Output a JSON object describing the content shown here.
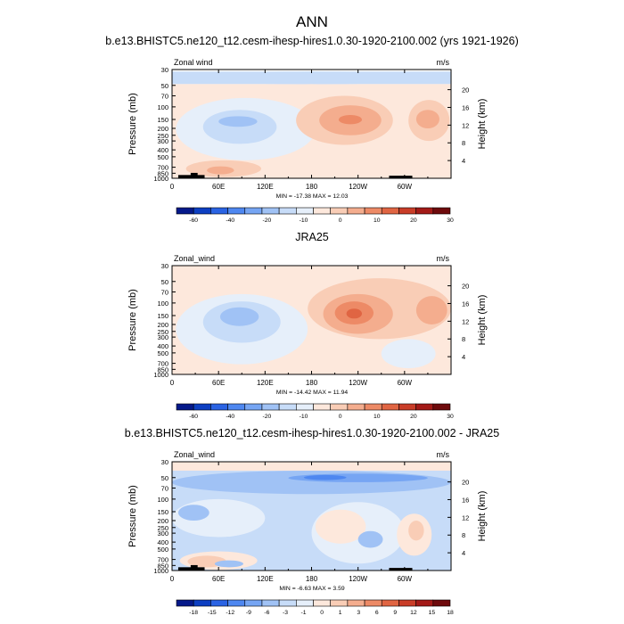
{
  "figure": {
    "main_title": "ANN"
  },
  "chart_data": [
    {
      "type": "heatmap",
      "title": "b.e13.BHISTC5.ne120_t12.cesm-ihesp-hires1.0.30-1920-2100.002 (yrs 1921-1926)",
      "variable_label": "Zonal wind",
      "units": "m/s",
      "ylabel": "Pressure (mb)",
      "ylabel_right": "Height (km)",
      "x_ticks": [
        "0",
        "60E",
        "120E",
        "180",
        "120W",
        "60W"
      ],
      "y_ticks": [
        "30",
        "50",
        "70",
        "100",
        "150",
        "200",
        "250",
        "300",
        "400",
        "500",
        "700",
        "850",
        "1000"
      ],
      "height_ticks": [
        "4",
        "8",
        "12",
        "16",
        "20"
      ],
      "stats_text": "MIN = -17.38   MAX = 12.03",
      "min": -17.38,
      "max": 12.03,
      "colorbar_levels": [
        "-60",
        "-40",
        "-20",
        "-10",
        "0",
        "10",
        "20",
        "30"
      ],
      "colors": [
        "#05198a",
        "#0d3fc2",
        "#2a63e3",
        "#4e87f0",
        "#76a5f3",
        "#a0c2f5",
        "#c7dcf8",
        "#e6effa",
        "#fde8dc",
        "#f9cdb6",
        "#f4ad8e",
        "#ed8a66",
        "#e06543",
        "#c93d28",
        "#a31a17",
        "#6e0a0c"
      ],
      "regions": [
        {
          "label": "weak-negative-band-high",
          "x0": 0,
          "x1": 360,
          "p0": 32,
          "p1": 48,
          "level": 6
        },
        {
          "label": "weak-positive-background",
          "x0": 0,
          "x1": 360,
          "p0": 48,
          "p1": 1000,
          "level": 8
        },
        {
          "label": "easterly-indian-ocean",
          "x0": 5,
          "x1": 185,
          "p0": 75,
          "p1": 560,
          "level": 7
        },
        {
          "label": "easterly-indian-ocean-core",
          "x0": 40,
          "x1": 135,
          "p0": 110,
          "p1": 330,
          "level": 6
        },
        {
          "label": "easterly-indian-ocean-max",
          "x0": 60,
          "x1": 110,
          "p0": 135,
          "p1": 190,
          "level": 5
        },
        {
          "label": "westerly-pacific",
          "x0": 160,
          "x1": 285,
          "p0": 70,
          "p1": 340,
          "level": 9
        },
        {
          "label": "westerly-pacific-core",
          "x0": 190,
          "x1": 270,
          "p0": 95,
          "p1": 250,
          "level": 10
        },
        {
          "label": "westerly-pacific-max",
          "x0": 215,
          "x1": 245,
          "p0": 130,
          "p1": 175,
          "level": 11
        },
        {
          "label": "westerly-atlantic",
          "x0": 305,
          "x1": 358,
          "p0": 80,
          "p1": 300,
          "level": 9
        },
        {
          "label": "westerly-atlantic-core",
          "x0": 315,
          "x1": 345,
          "p0": 110,
          "p1": 200,
          "level": 10
        },
        {
          "label": "surface-westerly-africa",
          "x0": 18,
          "x1": 115,
          "p0": 560,
          "p1": 960,
          "level": 9
        },
        {
          "label": "surface-westerly-core",
          "x0": 45,
          "x1": 80,
          "p0": 680,
          "p1": 880,
          "level": 10
        }
      ],
      "terrain": [
        {
          "label": "africa-highland",
          "x0": 8,
          "x1": 42,
          "p0": 900,
          "p1": 1000
        },
        {
          "label": "african-peak",
          "x0": 24,
          "x1": 33,
          "p0": 840,
          "p1": 1000
        },
        {
          "label": "andes",
          "x0": 280,
          "x1": 310,
          "p0": 920,
          "p1": 1000
        }
      ]
    },
    {
      "type": "heatmap",
      "title": "JRA25",
      "variable_label": "Zonal_wind",
      "units": "m/s",
      "ylabel": "Pressure (mb)",
      "ylabel_right": "Height (km)",
      "x_ticks": [
        "0",
        "60E",
        "120E",
        "180",
        "120W",
        "60W"
      ],
      "y_ticks": [
        "30",
        "50",
        "70",
        "100",
        "150",
        "200",
        "250",
        "300",
        "400",
        "500",
        "700",
        "850",
        "1000"
      ],
      "height_ticks": [
        "4",
        "8",
        "12",
        "16",
        "20"
      ],
      "stats_text": "MIN = -14.42   MAX = 11.94",
      "min": -14.42,
      "max": 11.94,
      "colorbar_levels": [
        "-60",
        "-40",
        "-20",
        "-10",
        "0",
        "10",
        "20",
        "30"
      ],
      "colors": [
        "#05198a",
        "#0d3fc2",
        "#2a63e3",
        "#4e87f0",
        "#76a5f3",
        "#a0c2f5",
        "#c7dcf8",
        "#e6effa",
        "#fde8dc",
        "#f9cdb6",
        "#f4ad8e",
        "#ed8a66",
        "#e06543",
        "#c93d28",
        "#a31a17",
        "#6e0a0c"
      ],
      "regions": [
        {
          "label": "positive-background",
          "x0": 0,
          "x1": 360,
          "p0": 30,
          "p1": 1000,
          "level": 8
        },
        {
          "label": "easterly-broad",
          "x0": 5,
          "x1": 175,
          "p0": 75,
          "p1": 720,
          "level": 7
        },
        {
          "label": "easterly-core",
          "x0": 40,
          "x1": 140,
          "p0": 95,
          "p1": 360,
          "level": 6
        },
        {
          "label": "easterly-max",
          "x0": 62,
          "x1": 112,
          "p0": 115,
          "p1": 210,
          "level": 5
        },
        {
          "label": "easterly-eastpac",
          "x0": 270,
          "x1": 340,
          "p0": 320,
          "p1": 820,
          "level": 7
        },
        {
          "label": "westerly-broad",
          "x0": 175,
          "x1": 360,
          "p0": 45,
          "p1": 320,
          "level": 9
        },
        {
          "label": "westerly-pacific",
          "x0": 195,
          "x1": 285,
          "p0": 75,
          "p1": 270,
          "level": 10
        },
        {
          "label": "westerly-pacific-core",
          "x0": 210,
          "x1": 260,
          "p0": 95,
          "p1": 200,
          "level": 11
        },
        {
          "label": "westerly-pacific-max",
          "x0": 225,
          "x1": 245,
          "p0": 120,
          "p1": 165,
          "level": 12
        },
        {
          "label": "westerly-atlantic",
          "x0": 315,
          "x1": 355,
          "p0": 80,
          "p1": 200,
          "level": 10
        }
      ],
      "terrain": []
    },
    {
      "type": "heatmap",
      "title": "b.e13.BHISTC5.ne120_t12.cesm-ihesp-hires1.0.30-1920-2100.002 - JRA25",
      "variable_label": "Zonal_wind",
      "units": "m/s",
      "ylabel": "Pressure (mb)",
      "ylabel_right": "Height (km)",
      "x_ticks": [
        "0",
        "60E",
        "120E",
        "180",
        "120W",
        "60W"
      ],
      "y_ticks": [
        "30",
        "50",
        "70",
        "100",
        "150",
        "200",
        "250",
        "300",
        "400",
        "500",
        "700",
        "850",
        "1000"
      ],
      "height_ticks": [
        "4",
        "8",
        "12",
        "16",
        "20"
      ],
      "stats_text": "MIN = -6.63   MAX = 3.59",
      "min": -6.63,
      "max": 3.59,
      "colorbar_levels": [
        "-18",
        "-15",
        "-12",
        "-9",
        "-6",
        "-3",
        "-1",
        "0",
        "1",
        "3",
        "6",
        "9",
        "12",
        "15",
        "18"
      ],
      "colors": [
        "#05198a",
        "#0d3fc2",
        "#2a63e3",
        "#4e87f0",
        "#76a5f3",
        "#a0c2f5",
        "#c7dcf8",
        "#e6effa",
        "#fde8dc",
        "#f9cdb6",
        "#f4ad8e",
        "#ed8a66",
        "#e06543",
        "#c93d28",
        "#a31a17",
        "#6e0a0c"
      ],
      "regions": [
        {
          "label": "slight-positive-top",
          "x0": 0,
          "x1": 360,
          "p0": 30,
          "p1": 40,
          "level": 8
        },
        {
          "label": "slight-negative-background",
          "x0": 0,
          "x1": 360,
          "p0": 40,
          "p1": 1000,
          "level": 6
        },
        {
          "label": "negative-upper-band",
          "x0": 0,
          "x1": 360,
          "p0": 40,
          "p1": 85,
          "level": 5
        },
        {
          "label": "negative-upper-core",
          "x0": 150,
          "x1": 330,
          "p0": 44,
          "p1": 58,
          "level": 4
        },
        {
          "label": "negative-upper-max",
          "x0": 170,
          "x1": 225,
          "p0": 46,
          "p1": 54,
          "level": 3
        },
        {
          "label": "near-zero-west",
          "x0": 0,
          "x1": 120,
          "p0": 100,
          "p1": 340,
          "level": 7
        },
        {
          "label": "near-zero-pacific",
          "x0": 180,
          "x1": 300,
          "p0": 110,
          "p1": 800,
          "level": 7
        },
        {
          "label": "weak-positive-pacific",
          "x0": 185,
          "x1": 250,
          "p0": 140,
          "p1": 420,
          "level": 8
        },
        {
          "label": "weak-positive-eastpac",
          "x0": 290,
          "x1": 335,
          "p0": 160,
          "p1": 620,
          "level": 8
        },
        {
          "label": "positive-eastpac-core",
          "x0": 305,
          "x1": 325,
          "p0": 200,
          "p1": 380,
          "level": 9
        },
        {
          "label": "negative-patch-pacific",
          "x0": 240,
          "x1": 272,
          "p0": 280,
          "p1": 480,
          "level": 5
        },
        {
          "label": "negative-west-upper",
          "x0": 8,
          "x1": 48,
          "p0": 120,
          "p1": 200,
          "level": 5
        },
        {
          "label": "surface-positive-africa",
          "x0": 10,
          "x1": 110,
          "p0": 540,
          "p1": 980,
          "level": 8
        },
        {
          "label": "surface-positive-core",
          "x0": 20,
          "x1": 70,
          "p0": 620,
          "p1": 900,
          "level": 9
        },
        {
          "label": "surface-negative-africa",
          "x0": 55,
          "x1": 92,
          "p0": 720,
          "p1": 900,
          "level": 5
        }
      ],
      "terrain": [
        {
          "label": "africa-highland",
          "x0": 8,
          "x1": 42,
          "p0": 900,
          "p1": 1000
        },
        {
          "label": "african-peak",
          "x0": 24,
          "x1": 33,
          "p0": 840,
          "p1": 1000
        },
        {
          "label": "andes",
          "x0": 280,
          "x1": 310,
          "p0": 920,
          "p1": 1000
        }
      ]
    }
  ]
}
